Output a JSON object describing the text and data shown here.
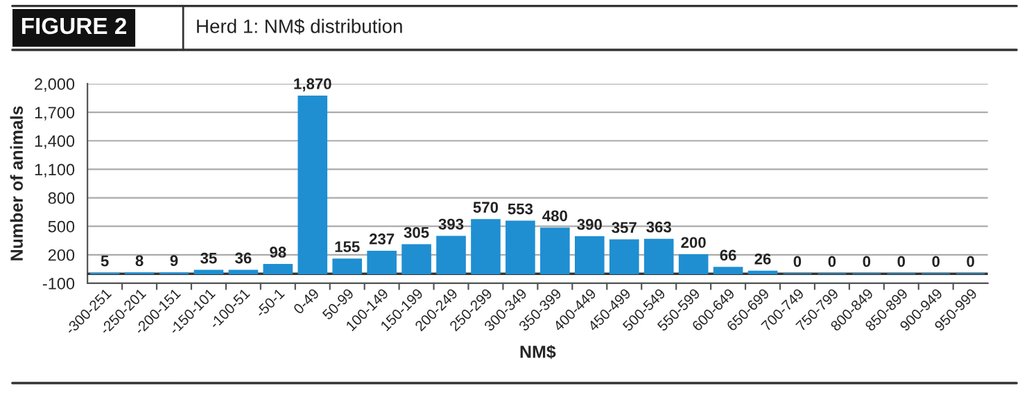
{
  "chart_data": {
    "type": "bar",
    "title": "FIGURE 2",
    "subtitle": "Herd 1: NM$ distribution",
    "xlabel": "NM$",
    "ylabel": "Number of animals",
    "categories": [
      "-300-251",
      "-250-201",
      "-200-151",
      "-150-101",
      "-100-51",
      "-50-1",
      "0-49",
      "50-99",
      "100-149",
      "150-199",
      "200-249",
      "250-299",
      "300-349",
      "350-399",
      "400-449",
      "450-499",
      "500-549",
      "550-599",
      "600-649",
      "650-699",
      "700-749",
      "750-799",
      "800-849",
      "850-899",
      "900-949",
      "950-999"
    ],
    "values": [
      5,
      8,
      9,
      35,
      36,
      98,
      1870,
      155,
      237,
      305,
      393,
      570,
      553,
      480,
      390,
      357,
      363,
      200,
      66,
      26,
      0,
      0,
      0,
      0,
      0,
      0
    ],
    "value_labels": [
      "5",
      "8",
      "9",
      "35",
      "36",
      "98",
      "1,870",
      "155",
      "237",
      "305",
      "393",
      "570",
      "553",
      "480",
      "390",
      "357",
      "363",
      "200",
      "66",
      "26",
      "0",
      "0",
      "0",
      "0",
      "0",
      "0"
    ],
    "color": "#1f8fd2",
    "ylim": [
      -100,
      2000
    ],
    "yticks": [
      {
        "value": -100,
        "label": "-100"
      },
      200,
      500,
      800,
      {
        "value": 1100,
        "label": "1,100"
      },
      {
        "value": 1400,
        "label": "1,400"
      },
      {
        "value": 1700,
        "label": "1,700"
      },
      {
        "value": 2000,
        "label": "2,000"
      }
    ],
    "grid": "y",
    "legend": false
  }
}
